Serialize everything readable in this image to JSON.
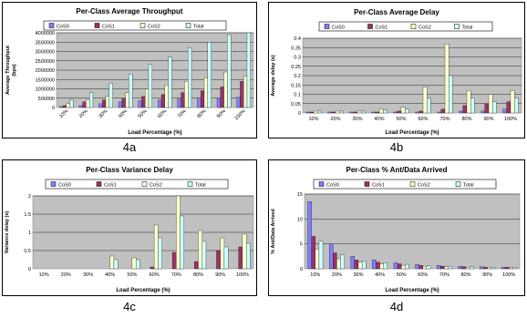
{
  "chart_data": [
    {
      "id": "4a",
      "type": "bar",
      "title": "Per-Class Average Throughput",
      "xlabel": "Load Percentage (%)",
      "ylabel": "Average Throughput",
      "ylabel2": "(bps)",
      "ylim": [
        0,
        4000000
      ],
      "yticks": [
        "0",
        "500000",
        "1000000",
        "1500000",
        "2000000",
        "2500000",
        "3000000",
        "3500000",
        "4000000"
      ],
      "legend_position": "top",
      "grid": true,
      "categories": [
        "10%",
        "20%",
        "30%",
        "40%",
        "50%",
        "60%",
        "70%",
        "80%",
        "90%",
        "100%"
      ],
      "series": [
        {
          "name": "CoS0",
          "color": "#8080ff",
          "values": [
            50000,
            100000,
            200000,
            300000,
            350000,
            400000,
            450000,
            500000,
            500000,
            550000
          ]
        },
        {
          "name": "CoS1",
          "color": "#993366",
          "values": [
            100000,
            300000,
            400000,
            500000,
            600000,
            700000,
            800000,
            900000,
            1100000,
            1400000
          ]
        },
        {
          "name": "CoS2",
          "color": "#ffffcc",
          "values": [
            200000,
            400000,
            600000,
            800000,
            1000000,
            1200000,
            1400000,
            1600000,
            1900000,
            1700000
          ]
        },
        {
          "name": "Total",
          "color": "#ccffff",
          "values": [
            400000,
            800000,
            1300000,
            1800000,
            2300000,
            2700000,
            3200000,
            3500000,
            3900000,
            4000000
          ]
        }
      ]
    },
    {
      "id": "4b",
      "type": "bar",
      "title": "Per-Class Average Delay",
      "xlabel": "Load Percentage (%)",
      "ylabel": "Average delay (s)",
      "ylim": [
        0,
        0.4
      ],
      "yticks": [
        "0",
        "0.05",
        "0.1",
        "0.15",
        "0.2",
        "0.25",
        "0.3",
        "0.35",
        "0.4"
      ],
      "legend_position": "top",
      "grid": true,
      "categories": [
        "10%",
        "20%",
        "30%",
        "40%",
        "50%",
        "60%",
        "70%",
        "80%",
        "90%",
        "100%"
      ],
      "series": [
        {
          "name": "CoS0",
          "color": "#8080ff",
          "values": [
            0.005,
            0.005,
            0.005,
            0.005,
            0.005,
            0.005,
            0.005,
            0.01,
            0.01,
            0.02
          ]
        },
        {
          "name": "CoS1",
          "color": "#993366",
          "values": [
            0.005,
            0.005,
            0.005,
            0.005,
            0.01,
            0.01,
            0.02,
            0.04,
            0.05,
            0.06
          ]
        },
        {
          "name": "CoS2",
          "color": "#ffffcc",
          "values": [
            0.01,
            0.01,
            0.01,
            0.02,
            0.03,
            0.14,
            0.37,
            0.12,
            0.1,
            0.12
          ]
        },
        {
          "name": "Total",
          "color": "#ccffff",
          "values": [
            0.01,
            0.01,
            0.01,
            0.015,
            0.02,
            0.08,
            0.2,
            0.08,
            0.06,
            0.08
          ]
        }
      ]
    },
    {
      "id": "4c",
      "type": "bar",
      "title": "Per-Class Variance Delay",
      "xlabel": "Load Percentage (%)",
      "ylabel": "Variance delay (s)",
      "ylim": [
        0,
        2
      ],
      "yticks": [
        "0",
        "0.5",
        "1",
        "1.5",
        "2"
      ],
      "legend_position": "top",
      "grid": true,
      "categories": [
        "10%",
        "20%",
        "30%",
        "40%",
        "50%",
        "60%",
        "70%",
        "80%",
        "90%",
        "100%"
      ],
      "series": [
        {
          "name": "CoS0",
          "color": "#8080ff",
          "values": [
            0,
            0,
            0,
            0,
            0,
            0,
            0,
            0,
            0,
            0
          ]
        },
        {
          "name": "CoS1",
          "color": "#993366",
          "values": [
            0,
            0,
            0,
            0,
            0,
            0.05,
            0.45,
            0.2,
            0.5,
            0.6
          ]
        },
        {
          "name": "CoS2",
          "color": "#ffffcc",
          "values": [
            0,
            0,
            0,
            0.35,
            0.3,
            1.2,
            2.0,
            1.05,
            0.85,
            0.95
          ]
        },
        {
          "name": "Total",
          "color": "#ccffff",
          "values": [
            0,
            0,
            0,
            0.25,
            0.25,
            0.85,
            1.45,
            0.75,
            0.6,
            0.7
          ]
        }
      ]
    },
    {
      "id": "4d",
      "type": "bar",
      "title": "Per-Class % Ant/Data Arrived",
      "xlabel": "Load Percentage (%)",
      "ylabel": "% Ant/Data Arrived",
      "ylim": [
        0,
        15
      ],
      "yticks": [
        "0",
        "5",
        "10",
        "15"
      ],
      "legend_position": "top",
      "grid": true,
      "categories": [
        "10%",
        "20%",
        "30%",
        "40%",
        "50%",
        "60%",
        "70%",
        "80%",
        "90%",
        "100%"
      ],
      "series": [
        {
          "name": "CoS0",
          "color": "#8080ff",
          "values": [
            13.5,
            5.0,
            2.5,
            1.8,
            1.2,
            0.9,
            0.7,
            0.5,
            0.4,
            0.3
          ]
        },
        {
          "name": "CoS1",
          "color": "#993366",
          "values": [
            6.5,
            3.2,
            1.8,
            1.3,
            1.0,
            0.7,
            0.5,
            0.4,
            0.3,
            0.3
          ]
        },
        {
          "name": "CoS2",
          "color": "#ffffcc",
          "values": [
            4.0,
            2.0,
            1.3,
            1.0,
            0.7,
            0.5,
            0.4,
            0.3,
            0.3,
            0.2
          ]
        },
        {
          "name": "Total",
          "color": "#ccffff",
          "values": [
            5.5,
            2.8,
            1.6,
            1.2,
            0.9,
            0.6,
            0.5,
            0.4,
            0.3,
            0.3
          ]
        }
      ]
    }
  ]
}
